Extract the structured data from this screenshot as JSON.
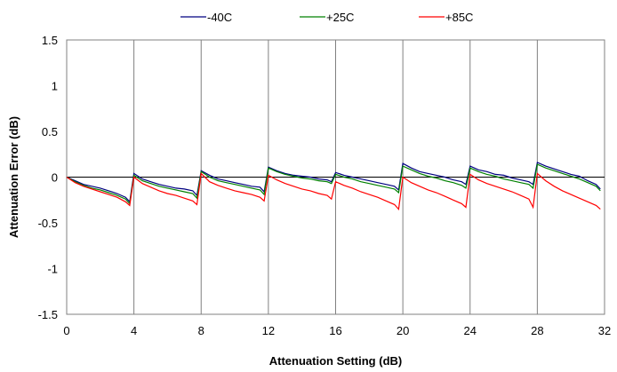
{
  "chart_data": {
    "type": "line",
    "xlabel": "Attenuation Setting (dB)",
    "ylabel": "Attenuation Error (dB)",
    "xlim": [
      0,
      32
    ],
    "ylim": [
      -1.5,
      1.5
    ],
    "x_ticks": [
      0,
      4,
      8,
      12,
      16,
      20,
      24,
      28,
      32
    ],
    "x_tick_labels": [
      "0",
      "4",
      "8",
      "12",
      "16",
      "20",
      "24",
      "28",
      "32"
    ],
    "y_ticks": [
      1.5,
      1,
      0.5,
      0,
      -0.5,
      -1,
      -1.5
    ],
    "y_tick_labels": [
      "1.5",
      "1",
      "0.5",
      "0",
      "-0.5",
      "-1",
      "-1.5"
    ],
    "grid": "vertical",
    "legend_position": "top",
    "x": [
      0,
      0.5,
      1,
      1.5,
      2,
      2.5,
      3,
      3.5,
      3.75,
      4,
      4.5,
      5,
      5.5,
      6,
      6.5,
      7,
      7.5,
      7.75,
      8,
      8.5,
      9,
      9.5,
      10,
      10.5,
      11,
      11.5,
      11.75,
      12,
      12.5,
      13,
      13.5,
      14,
      14.5,
      15,
      15.5,
      15.75,
      16,
      16.5,
      17,
      17.5,
      18,
      18.5,
      19,
      19.5,
      19.75,
      20,
      20.5,
      21,
      21.5,
      22,
      22.5,
      23,
      23.5,
      23.75,
      24,
      24.5,
      25,
      25.5,
      26,
      26.5,
      27,
      27.5,
      27.75,
      28,
      28.5,
      29,
      29.5,
      30,
      30.5,
      31,
      31.5,
      31.75
    ],
    "series": [
      {
        "name": "-40C",
        "color": "#000080",
        "values": [
          0,
          -0.04,
          -0.08,
          -0.1,
          -0.12,
          -0.15,
          -0.18,
          -0.22,
          -0.27,
          0.04,
          -0.02,
          -0.05,
          -0.08,
          -0.1,
          -0.12,
          -0.13,
          -0.15,
          -0.2,
          0.07,
          0.02,
          -0.02,
          -0.04,
          -0.06,
          -0.08,
          -0.1,
          -0.11,
          -0.16,
          0.11,
          0.07,
          0.04,
          0.02,
          0.01,
          0,
          -0.02,
          -0.03,
          -0.05,
          0.05,
          0.02,
          0,
          -0.02,
          -0.04,
          -0.06,
          -0.08,
          -0.1,
          -0.14,
          0.15,
          0.1,
          0.06,
          0.04,
          0.02,
          0,
          -0.03,
          -0.05,
          -0.08,
          0.12,
          0.08,
          0.06,
          0.03,
          0.02,
          -0.01,
          -0.03,
          -0.05,
          -0.08,
          0.16,
          0.12,
          0.09,
          0.06,
          0.03,
          0.01,
          -0.04,
          -0.08,
          -0.13
        ]
      },
      {
        "name": "+25C",
        "color": "#008000",
        "values": [
          0,
          -0.05,
          -0.09,
          -0.12,
          -0.14,
          -0.17,
          -0.2,
          -0.24,
          -0.29,
          0.02,
          -0.04,
          -0.07,
          -0.1,
          -0.12,
          -0.14,
          -0.16,
          -0.18,
          -0.23,
          0.06,
          0,
          -0.04,
          -0.06,
          -0.08,
          -0.1,
          -0.12,
          -0.14,
          -0.19,
          0.1,
          0.06,
          0.03,
          0.01,
          -0.01,
          -0.02,
          -0.04,
          -0.05,
          -0.07,
          0.03,
          0,
          -0.02,
          -0.05,
          -0.07,
          -0.09,
          -0.11,
          -0.13,
          -0.17,
          0.12,
          0.08,
          0.04,
          0.01,
          -0.01,
          -0.04,
          -0.06,
          -0.09,
          -0.12,
          0.1,
          0.06,
          0.03,
          0.01,
          -0.02,
          -0.04,
          -0.06,
          -0.08,
          -0.12,
          0.14,
          0.1,
          0.07,
          0.04,
          0.01,
          -0.02,
          -0.06,
          -0.1,
          -0.15
        ]
      },
      {
        "name": "+85C",
        "color": "#ff0000",
        "values": [
          0,
          -0.06,
          -0.1,
          -0.13,
          -0.16,
          -0.19,
          -0.22,
          -0.27,
          -0.31,
          0,
          -0.07,
          -0.11,
          -0.15,
          -0.18,
          -0.2,
          -0.23,
          -0.26,
          -0.3,
          0.04,
          -0.05,
          -0.09,
          -0.12,
          -0.15,
          -0.17,
          -0.19,
          -0.22,
          -0.26,
          0.02,
          -0.03,
          -0.07,
          -0.1,
          -0.13,
          -0.15,
          -0.18,
          -0.2,
          -0.24,
          -0.05,
          -0.09,
          -0.12,
          -0.16,
          -0.19,
          -0.22,
          -0.26,
          -0.3,
          -0.35,
          0,
          -0.06,
          -0.1,
          -0.14,
          -0.17,
          -0.21,
          -0.25,
          -0.29,
          -0.33,
          0.03,
          -0.03,
          -0.07,
          -0.1,
          -0.13,
          -0.16,
          -0.2,
          -0.24,
          -0.33,
          0.04,
          -0.04,
          -0.1,
          -0.15,
          -0.19,
          -0.23,
          -0.27,
          -0.31,
          -0.35
        ]
      }
    ]
  }
}
